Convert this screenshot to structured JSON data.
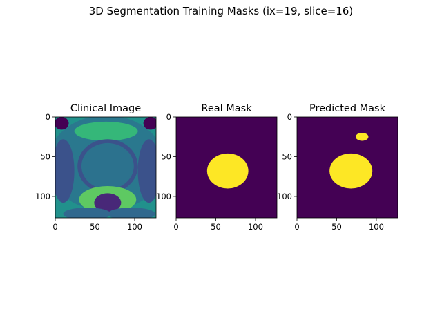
{
  "figure": {
    "suptitle": "3D Segmentation Training Masks (ix=19, slice=16)"
  },
  "colors": {
    "background": "#440154",
    "mask": "#fde725",
    "image_dark": "#3b528b",
    "image_mid": "#21918c",
    "image_bright": "#5ec962"
  },
  "chart_data": [
    {
      "type": "heatmap",
      "title": "Clinical Image",
      "xticks": [
        0,
        50,
        100
      ],
      "yticks": [
        0,
        50,
        100
      ],
      "xlim": [
        0,
        127
      ],
      "ylim": [
        127,
        0
      ],
      "colormap": "viridis"
    },
    {
      "type": "heatmap",
      "title": "Real Mask",
      "xticks": [
        0,
        50,
        100
      ],
      "yticks": [
        0,
        50,
        100
      ],
      "xlim": [
        0,
        127
      ],
      "ylim": [
        127,
        0
      ],
      "colormap": "viridis",
      "regions": [
        {
          "label": 1,
          "center": [
            65,
            68
          ],
          "radius_x": 26,
          "radius_y": 22
        }
      ]
    },
    {
      "type": "heatmap",
      "title": "Predicted Mask",
      "xticks": [
        0,
        50,
        100
      ],
      "yticks": [
        0,
        50,
        100
      ],
      "xlim": [
        0,
        127
      ],
      "ylim": [
        127,
        0
      ],
      "colormap": "viridis",
      "regions": [
        {
          "label": 1,
          "center": [
            68,
            68
          ],
          "radius_x": 27,
          "radius_y": 22
        },
        {
          "label": 1,
          "center": [
            82,
            25
          ],
          "radius_x": 8,
          "radius_y": 5
        }
      ]
    }
  ]
}
